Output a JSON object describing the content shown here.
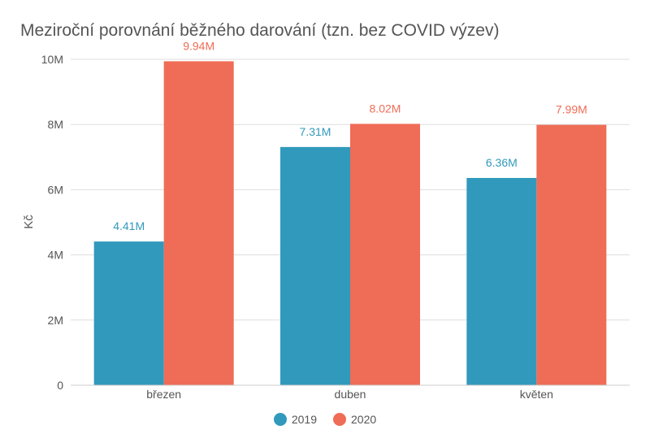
{
  "chart_data": {
    "type": "bar",
    "title": "Meziroční porovnání běžného darování (tzn. bez COVID výzev)",
    "ylabel": "Kč",
    "xlabel": "",
    "categories": [
      "březen",
      "duben",
      "květen"
    ],
    "series": [
      {
        "name": "2019",
        "color": "#3199bc",
        "values": [
          4.41,
          7.31,
          6.36
        ],
        "labels": [
          "4.41M",
          "7.31M",
          "6.36M"
        ]
      },
      {
        "name": "2020",
        "color": "#ef6c56",
        "values": [
          9.94,
          8.02,
          7.99
        ],
        "labels": [
          "9.94M",
          "8.02M",
          "7.99M"
        ]
      }
    ],
    "unit": "M",
    "ylim": [
      0,
      10
    ],
    "yticks": [
      0,
      2,
      4,
      6,
      8,
      10
    ],
    "ytick_labels": [
      "0",
      "2M",
      "4M",
      "6M",
      "8M",
      "10M"
    ],
    "grid": true,
    "legend_position": "bottom-center"
  }
}
